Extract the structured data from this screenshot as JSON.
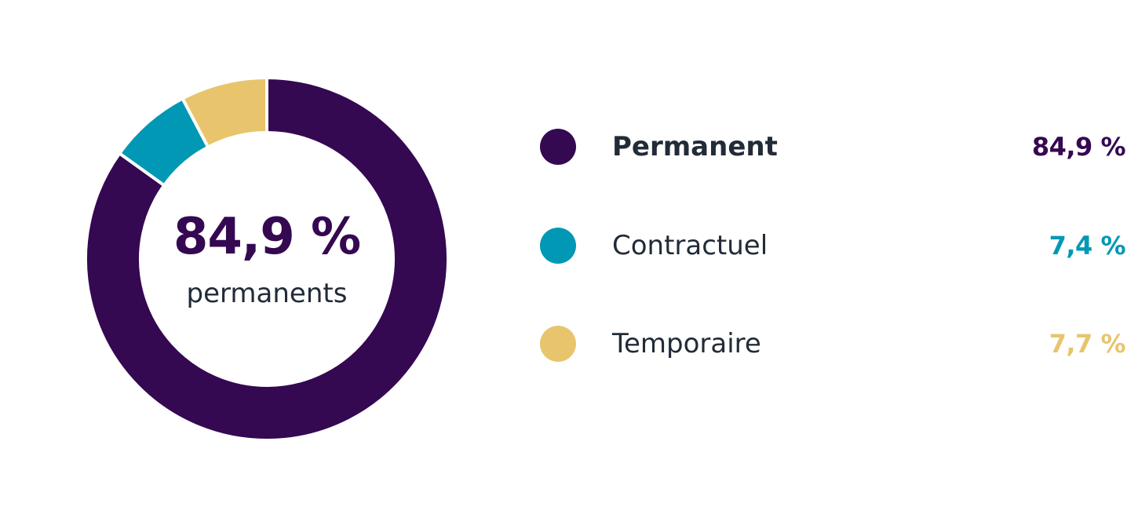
{
  "chart_data": {
    "type": "pie",
    "variant": "donut",
    "center": {
      "value": "84,9 %",
      "caption": "permanents"
    },
    "categories": [
      "Permanent",
      "Contractuel",
      "Temporaire"
    ],
    "values": [
      84.9,
      7.4,
      7.7
    ],
    "value_labels": [
      "84,9 %",
      "7,4 %",
      "7,7 %"
    ],
    "colors": [
      "#350852",
      "#0098b4",
      "#e8c56c"
    ],
    "emphasized_category": "Permanent",
    "legend_position": "right"
  }
}
